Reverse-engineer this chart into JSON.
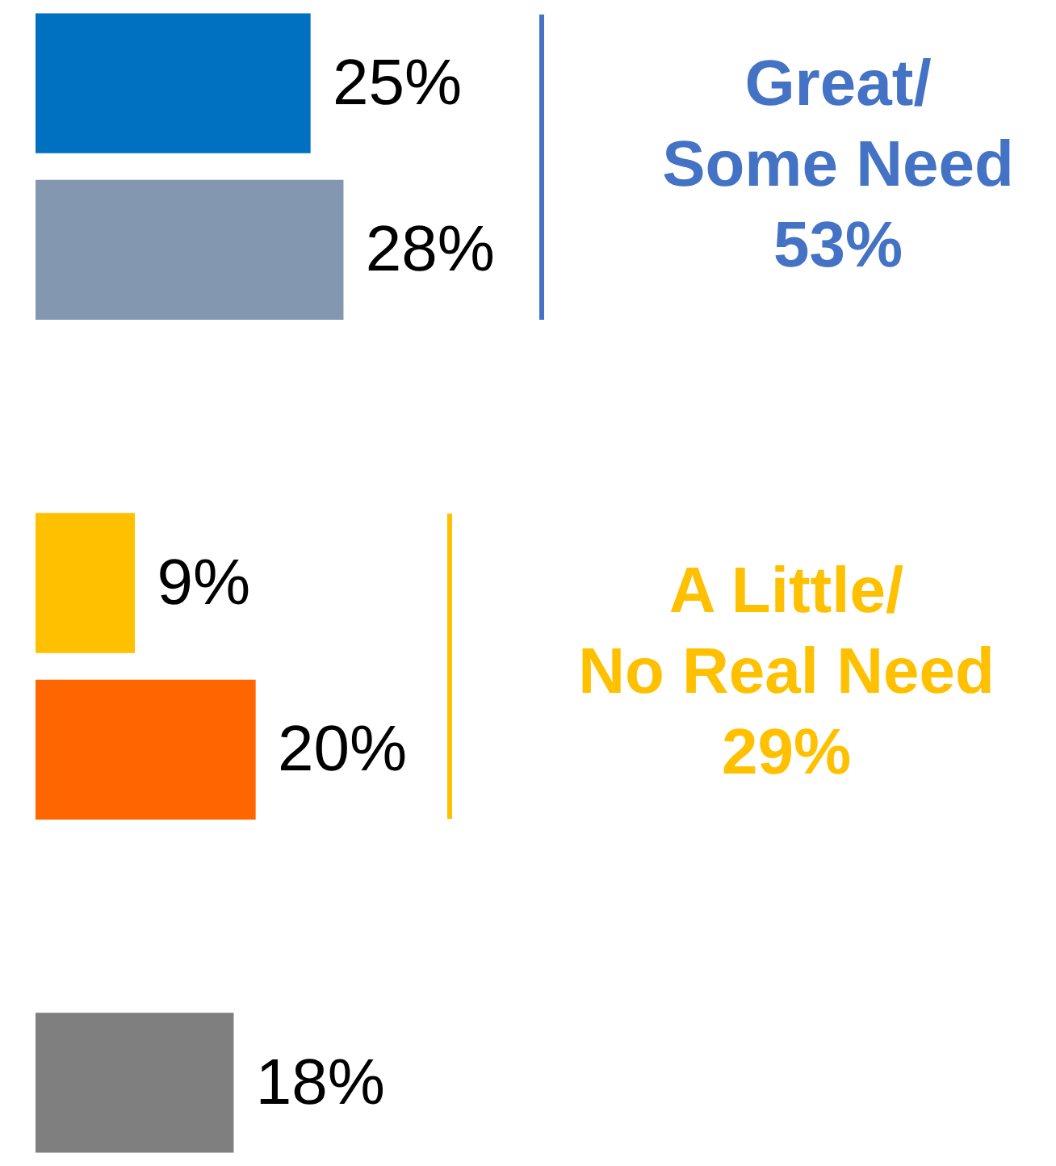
{
  "chart_data": {
    "type": "bar",
    "orientation": "horizontal",
    "categories": [
      null,
      null,
      null,
      null,
      null
    ],
    "values": [
      25,
      28,
      9,
      20,
      18
    ],
    "colors": [
      "#0070c0",
      "#8497b0",
      "#ffc000",
      "#ff6600",
      "#7f7f7f"
    ],
    "value_labels": [
      "25%",
      "28%",
      "9%",
      "20%",
      "18%"
    ],
    "annotations": [
      "Great/\nSome Need\n53%",
      "A Little/\nNo Real Need\n29%"
    ]
  }
}
